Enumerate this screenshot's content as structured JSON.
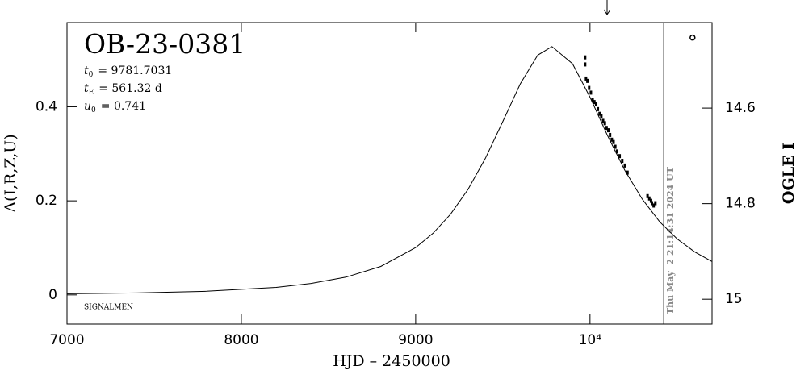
{
  "chart_data": {
    "type": "scatter",
    "title": "OB-23-0381",
    "parameters": [
      {
        "symbol": "t",
        "sub": "0",
        "text": "= 9781.7031"
      },
      {
        "symbol": "t",
        "sub": "E",
        "text": "= 561.32 d"
      },
      {
        "symbol": "u",
        "sub": "0",
        "text": "= 0.741"
      }
    ],
    "signature": "SIGNALMEN",
    "date_label": "Thu May  2 21:14:31 2024 UT",
    "now_line": 10421,
    "x_label": "HJD – 2450000",
    "y_label": "Δ(I,R,Z,U)",
    "y2_label": "OGLE I",
    "xlim": [
      7000,
      10700
    ],
    "xticks": [
      7000,
      8000,
      9000,
      {
        "value": 10000,
        "label": "10⁴"
      }
    ],
    "ylim": [
      -0.062,
      0.579
    ],
    "yticks": [
      0,
      0.2,
      0.4
    ],
    "y2lim": [
      15.052,
      14.421
    ],
    "y2ticks": [
      14.6,
      14.8,
      15
    ],
    "model": {
      "color": "#000000",
      "x": [
        7000,
        7400,
        7800,
        8200,
        8400,
        8600,
        8800,
        9000,
        9100,
        9200,
        9300,
        9400,
        9500,
        9600,
        9700,
        9781.7,
        9900,
        10000,
        10100,
        10200,
        10300,
        10400,
        10500,
        10600,
        10700
      ],
      "values": [
        0.0025,
        0.0042,
        0.0078,
        0.016,
        0.0243,
        0.0377,
        0.0606,
        0.1007,
        0.1311,
        0.1716,
        0.2243,
        0.2906,
        0.3689,
        0.4488,
        0.5098,
        0.528,
        0.4915,
        0.4205,
        0.3392,
        0.2647,
        0.2034,
        0.1554,
        0.119,
        0.0915,
        0.071
      ]
    },
    "series": [
      {
        "color": "#000000",
        "marker": "square",
        "x": [
          9972,
          9972,
          9977,
          9985,
          9995,
          10005,
          10015,
          10025,
          10035,
          10045,
          10055,
          10065,
          10075,
          10085,
          10095,
          10105,
          10115,
          10125,
          10135,
          10145,
          10155,
          10170,
          10185,
          10200,
          10215,
          10330,
          10340,
          10350,
          10355,
          10365,
          10375
        ],
        "values": [
          0.505,
          0.49,
          0.46,
          0.455,
          0.44,
          0.43,
          0.415,
          0.41,
          0.405,
          0.395,
          0.385,
          0.38,
          0.37,
          0.365,
          0.355,
          0.35,
          0.34,
          0.33,
          0.325,
          0.315,
          0.305,
          0.295,
          0.285,
          0.275,
          0.26,
          0.21,
          0.205,
          0.2,
          0.195,
          0.19,
          0.195
        ]
      },
      {
        "color": "#000000",
        "marker": "circle",
        "x": [
          10588
        ],
        "values": [
          0.547
        ]
      }
    ]
  }
}
